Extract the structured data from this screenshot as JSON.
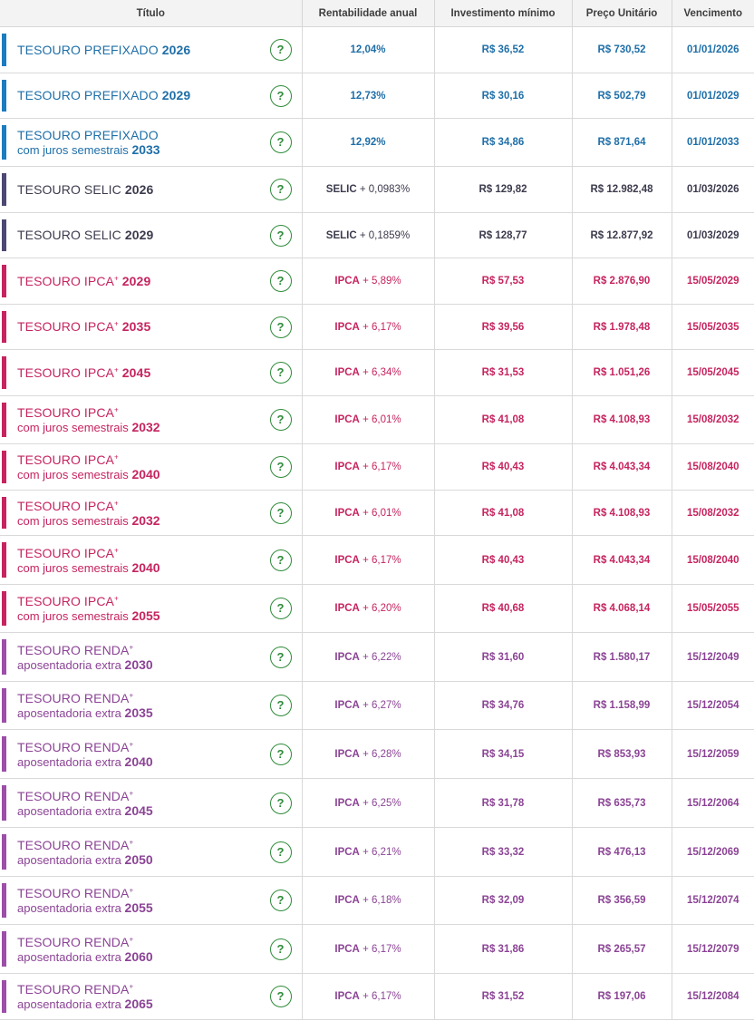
{
  "colors": {
    "prefixado": "#1b7cc0",
    "prefixado_text": "#1f6fa8",
    "selic": "#4c4873",
    "selic_text": "#3b3b4d",
    "ipca": "#c6245f",
    "ipca_text": "#c6245f",
    "renda": "#9c4ea8",
    "renda_text": "#8b4395"
  },
  "header": {
    "title": "Título",
    "rate": "Rentabilidade anual",
    "min": "Investimento mínimo",
    "price": "Preço Unitário",
    "maturity": "Vencimento"
  },
  "rows": [
    {
      "group": "prefixado",
      "name": "TESOURO PREFIXADO",
      "sup": "",
      "sub": "",
      "year": "2026",
      "rate_prefix": "",
      "rate": "12,04%",
      "min": "R$ 36,52",
      "price": "R$ 730,52",
      "maturity": "01/01/2026",
      "help": "?"
    },
    {
      "group": "prefixado",
      "name": "TESOURO PREFIXADO",
      "sup": "",
      "sub": "",
      "year": "2029",
      "rate_prefix": "",
      "rate": "12,73%",
      "min": "R$ 30,16",
      "price": "R$ 502,79",
      "maturity": "01/01/2029",
      "help": "?"
    },
    {
      "group": "prefixado",
      "name": "TESOURO PREFIXADO",
      "sup": "",
      "sub": "com juros semestrais",
      "year": "2033",
      "rate_prefix": "",
      "rate": "12,92%",
      "min": "R$ 34,86",
      "price": "R$ 871,64",
      "maturity": "01/01/2033",
      "help": "?"
    },
    {
      "group": "selic",
      "name": "TESOURO SELIC",
      "sup": "",
      "sub": "",
      "year": "2026",
      "rate_prefix": "SELIC",
      "rate": " + 0,0983%",
      "min": "R$ 129,82",
      "price": "R$ 12.982,48",
      "maturity": "01/03/2026",
      "help": "?"
    },
    {
      "group": "selic",
      "name": "TESOURO SELIC",
      "sup": "",
      "sub": "",
      "year": "2029",
      "rate_prefix": "SELIC",
      "rate": " + 0,1859%",
      "min": "R$ 128,77",
      "price": "R$ 12.877,92",
      "maturity": "01/03/2029",
      "help": "?"
    },
    {
      "group": "ipca",
      "name": "TESOURO IPCA",
      "sup": "+",
      "sub": "",
      "year": "2029",
      "rate_prefix": "IPCA",
      "rate": " + 5,89%",
      "min": "R$ 57,53",
      "price": "R$ 2.876,90",
      "maturity": "15/05/2029",
      "help": "?"
    },
    {
      "group": "ipca",
      "name": "TESOURO IPCA",
      "sup": "+",
      "sub": "",
      "year": "2035",
      "rate_prefix": "IPCA",
      "rate": " + 6,17%",
      "min": "R$ 39,56",
      "price": "R$ 1.978,48",
      "maturity": "15/05/2035",
      "help": "?"
    },
    {
      "group": "ipca",
      "name": "TESOURO IPCA",
      "sup": "+",
      "sub": "",
      "year": "2045",
      "rate_prefix": "IPCA",
      "rate": " + 6,34%",
      "min": "R$ 31,53",
      "price": "R$ 1.051,26",
      "maturity": "15/05/2045",
      "help": "?"
    },
    {
      "group": "ipca",
      "name": "TESOURO IPCA",
      "sup": "+",
      "sub": "com juros semestrais",
      "year": "2032",
      "rate_prefix": "IPCA",
      "rate": " + 6,01%",
      "min": "R$ 41,08",
      "price": "R$ 4.108,93",
      "maturity": "15/08/2032",
      "help": "?"
    },
    {
      "group": "ipca",
      "name": "TESOURO IPCA",
      "sup": "+",
      "sub": "com juros semestrais",
      "year": "2040",
      "rate_prefix": "IPCA",
      "rate": " + 6,17%",
      "min": "R$ 40,43",
      "price": "R$ 4.043,34",
      "maturity": "15/08/2040",
      "help": "?"
    },
    {
      "group": "ipca",
      "name": "TESOURO IPCA",
      "sup": "+",
      "sub": "com juros semestrais",
      "year": "2032",
      "rate_prefix": "IPCA",
      "rate": " + 6,01%",
      "min": "R$ 41,08",
      "price": "R$ 4.108,93",
      "maturity": "15/08/2032",
      "help": "?"
    },
    {
      "group": "ipca",
      "name": "TESOURO IPCA",
      "sup": "+",
      "sub": "com juros semestrais",
      "year": "2040",
      "rate_prefix": "IPCA",
      "rate": " + 6,17%",
      "min": "R$ 40,43",
      "price": "R$ 4.043,34",
      "maturity": "15/08/2040",
      "help": "?"
    },
    {
      "group": "ipca",
      "name": "TESOURO IPCA",
      "sup": "+",
      "sub": "com juros semestrais",
      "year": "2055",
      "rate_prefix": "IPCA",
      "rate": " + 6,20%",
      "min": "R$ 40,68",
      "price": "R$ 4.068,14",
      "maturity": "15/05/2055",
      "help": "?"
    },
    {
      "group": "renda",
      "name": "TESOURO RENDA",
      "sup": "+",
      "sub": "aposentadoria extra",
      "year": "2030",
      "rate_prefix": "IPCA",
      "rate": " + 6,22%",
      "min": "R$ 31,60",
      "price": "R$ 1.580,17",
      "maturity": "15/12/2049",
      "help": "?"
    },
    {
      "group": "renda",
      "name": "TESOURO RENDA",
      "sup": "+",
      "sub": "aposentadoria extra",
      "year": "2035",
      "rate_prefix": "IPCA",
      "rate": " + 6,27%",
      "min": "R$ 34,76",
      "price": "R$ 1.158,99",
      "maturity": "15/12/2054",
      "help": "?"
    },
    {
      "group": "renda",
      "name": "TESOURO RENDA",
      "sup": "+",
      "sub": "aposentadoria extra",
      "year": "2040",
      "rate_prefix": "IPCA",
      "rate": " + 6,28%",
      "min": "R$ 34,15",
      "price": "R$ 853,93",
      "maturity": "15/12/2059",
      "help": "?"
    },
    {
      "group": "renda",
      "name": "TESOURO RENDA",
      "sup": "+",
      "sub": "aposentadoria extra",
      "year": "2045",
      "rate_prefix": "IPCA",
      "rate": " + 6,25%",
      "min": "R$ 31,78",
      "price": "R$ 635,73",
      "maturity": "15/12/2064",
      "help": "?"
    },
    {
      "group": "renda",
      "name": "TESOURO RENDA",
      "sup": "+",
      "sub": "aposentadoria extra",
      "year": "2050",
      "rate_prefix": "IPCA",
      "rate": " + 6,21%",
      "min": "R$ 33,32",
      "price": "R$ 476,13",
      "maturity": "15/12/2069",
      "help": "?"
    },
    {
      "group": "renda",
      "name": "TESOURO RENDA",
      "sup": "+",
      "sub": "aposentadoria extra",
      "year": "2055",
      "rate_prefix": "IPCA",
      "rate": " + 6,18%",
      "min": "R$ 32,09",
      "price": "R$ 356,59",
      "maturity": "15/12/2074",
      "help": "?"
    },
    {
      "group": "renda",
      "name": "TESOURO RENDA",
      "sup": "+",
      "sub": "aposentadoria extra",
      "year": "2060",
      "rate_prefix": "IPCA",
      "rate": " + 6,17%",
      "min": "R$ 31,86",
      "price": "R$ 265,57",
      "maturity": "15/12/2079",
      "help": "?"
    },
    {
      "group": "renda",
      "name": "TESOURO RENDA",
      "sup": "+",
      "sub": "aposentadoria extra",
      "year": "2065",
      "rate_prefix": "IPCA",
      "rate": " + 6,17%",
      "min": "R$ 31,52",
      "price": "R$ 197,06",
      "maturity": "15/12/2084",
      "help": "?"
    }
  ]
}
